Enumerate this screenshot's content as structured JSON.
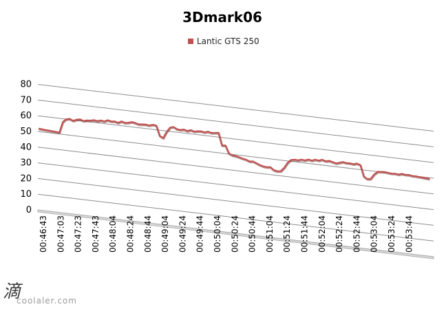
{
  "chart_data": {
    "type": "line",
    "title": "3Dmark06",
    "xlabel": "",
    "ylabel": "",
    "ylim": [
      0,
      80
    ],
    "yticks": [
      0,
      10,
      20,
      30,
      40,
      50,
      60,
      70,
      80
    ],
    "grid": true,
    "legend_position": "top",
    "x_tick_labels": [
      "00:46:43",
      "00:47:03",
      "00:47:23",
      "00:47:43",
      "00:48:04",
      "00:48:24",
      "00:48:44",
      "00:49:04",
      "00:49:24",
      "00:49:44",
      "00:50:04",
      "00:50:24",
      "00:50:44",
      "00:51:04",
      "00:51:24",
      "00:51:44",
      "00:52:04",
      "00:52:24",
      "00:52:44",
      "00:53:04",
      "00:53:24",
      "00:53:44"
    ],
    "x_seconds_span": [
      0,
      434
    ],
    "series": [
      {
        "name": "Lantic GTS 250",
        "color": "#c0504d",
        "values": [
          52,
          51.8,
          51.6,
          51.5,
          51.3,
          51.2,
          51,
          58,
          60,
          60.5,
          59.5,
          60.5,
          61,
          60.2,
          60.8,
          61,
          61.5,
          61.2,
          61.8,
          61.5,
          62.5,
          62,
          62.3,
          61.6,
          62.8,
          62.1,
          62.5,
          63.2,
          62.8,
          62.2,
          62.5,
          62.6,
          62.3,
          63,
          62.8,
          56.5,
          55.3,
          59.5,
          62.5,
          63.2,
          62,
          61.8,
          62.3,
          61.6,
          62.5,
          61.8,
          62.3,
          62.5,
          62.1,
          62.8,
          62.2,
          62.5,
          62.8,
          55,
          55.3,
          50.5,
          49.5,
          49.3,
          48.8,
          48.2,
          47.8,
          46.9,
          47.2,
          46.3,
          45.4,
          44.8,
          44.6,
          44.9,
          43.2,
          42.8,
          43.1,
          45.5,
          49,
          51,
          51.5,
          51.3,
          52,
          51.8,
          52.6,
          52.2,
          53,
          52.7,
          53.5,
          52.8,
          53.3,
          52.8,
          52.2,
          52.9,
          53.6,
          53.2,
          53.3,
          53,
          53.7,
          53,
          46,
          44.6,
          44.9,
          48,
          50,
          50.2,
          50.4,
          50.1,
          49.9,
          50.1,
          49.8,
          50.5,
          50.2,
          50.3,
          49.9,
          50,
          49.8,
          49.7,
          49.5,
          49.4
        ]
      }
    ]
  },
  "watermark": {
    "glyph": "滴",
    "text": "coolaler.com"
  }
}
